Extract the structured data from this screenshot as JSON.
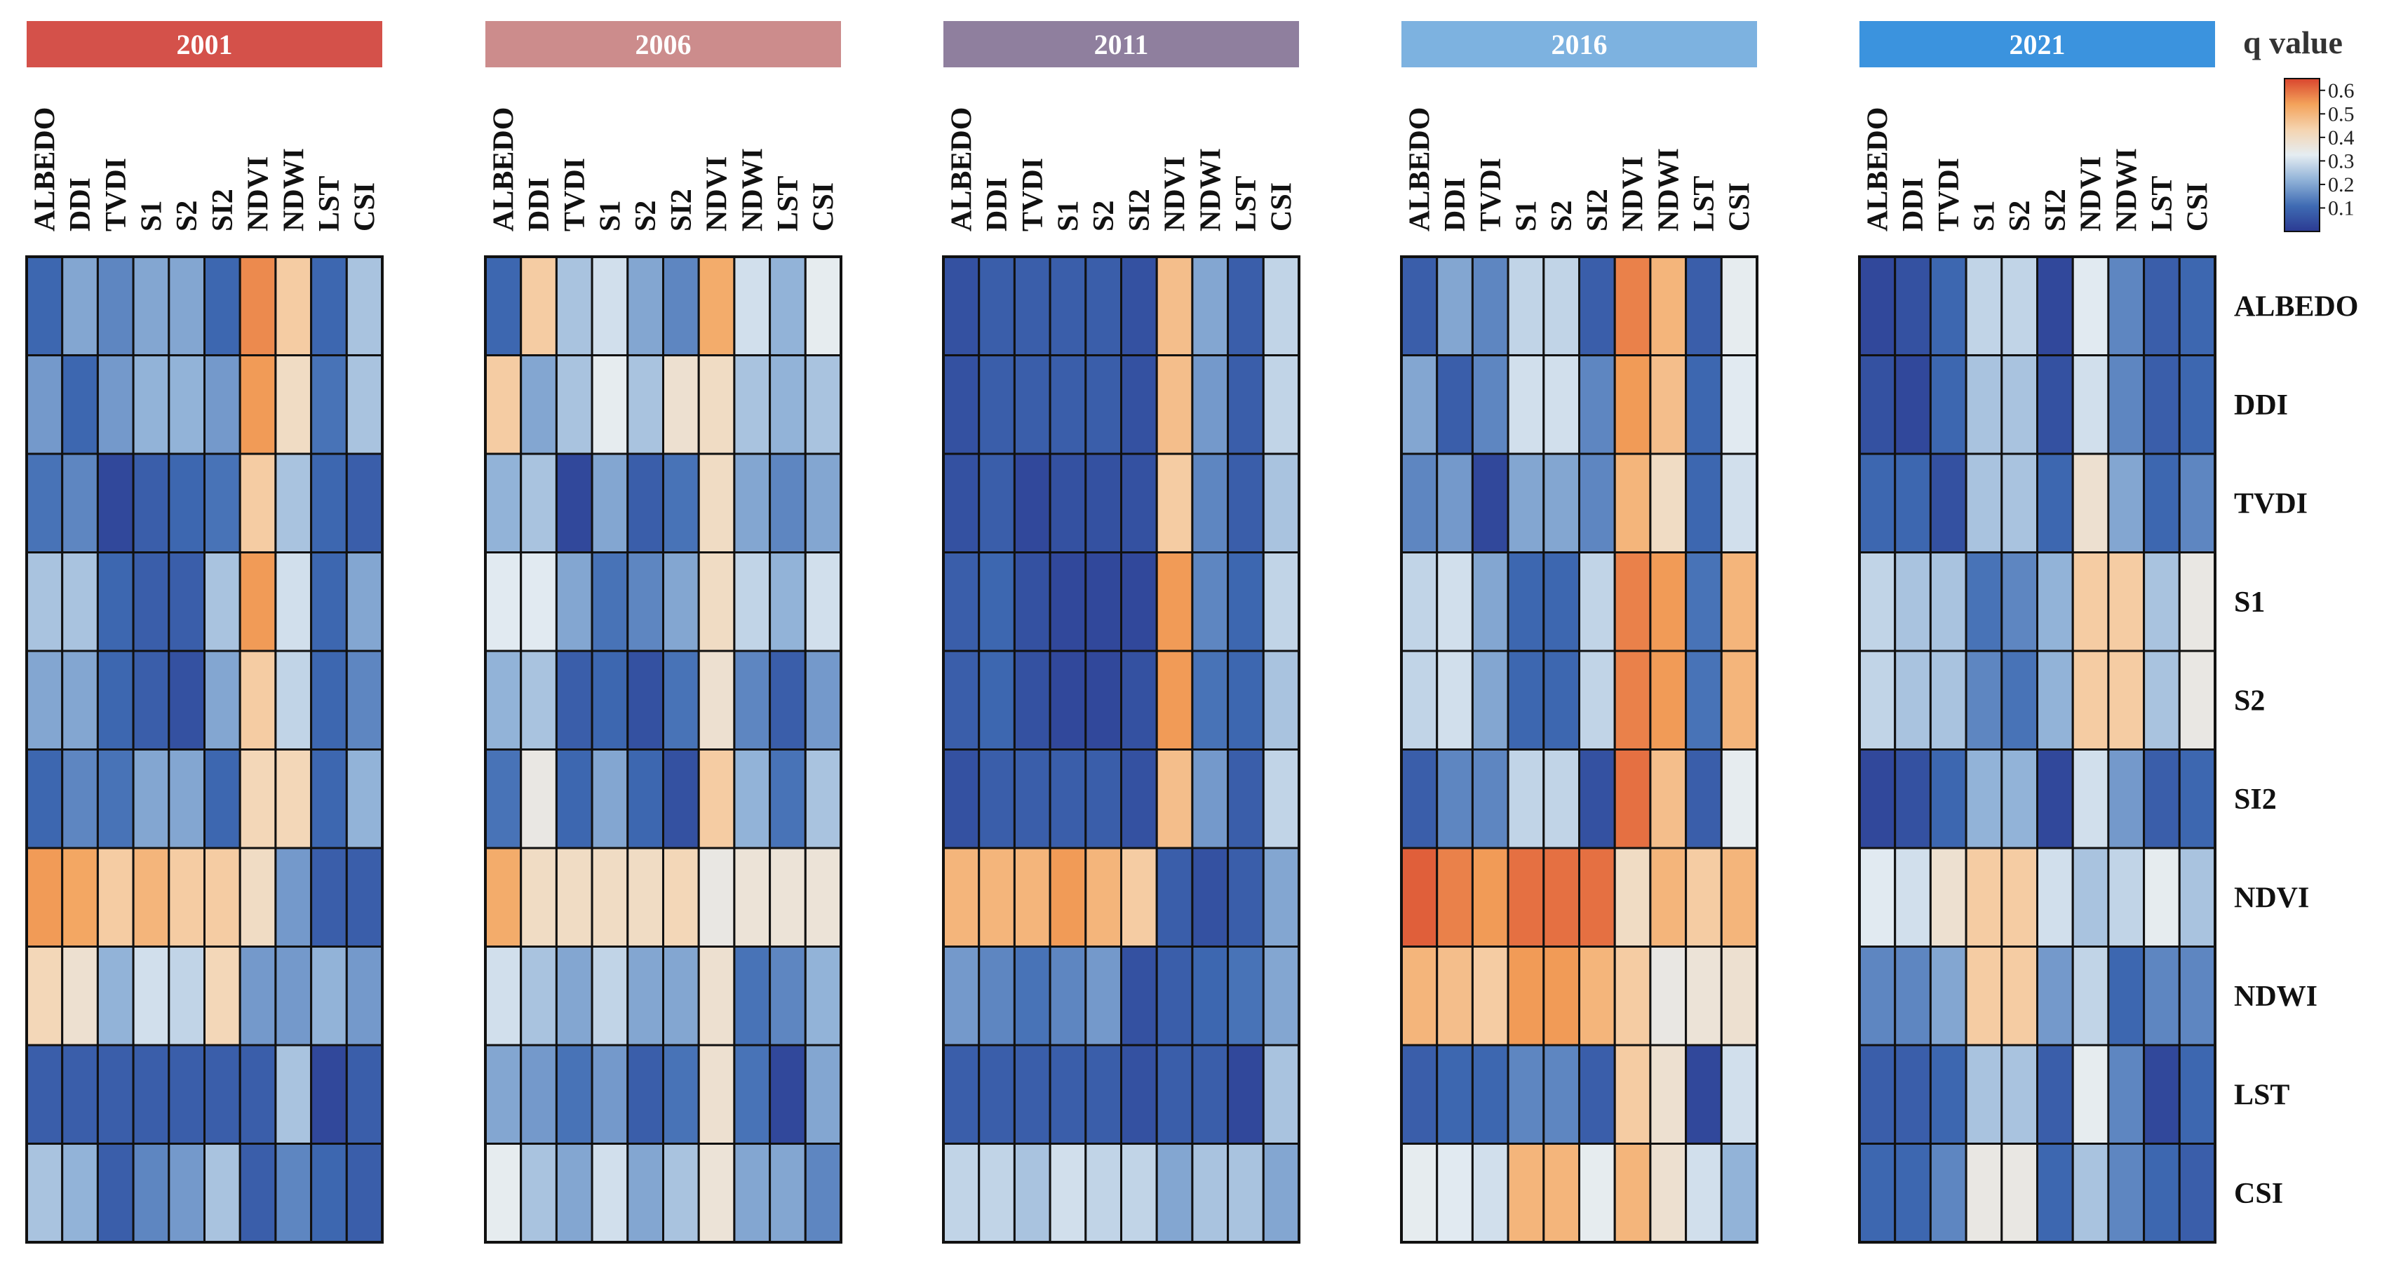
{
  "chart_data": {
    "type": "heatmap",
    "legend_title": "q value",
    "colorbar": {
      "range": [
        0,
        0.65
      ],
      "ticks": [
        "0.6",
        "0.5",
        "0.4",
        "0.3",
        "0.2",
        "0.1"
      ],
      "tick_values": [
        0.6,
        0.5,
        0.4,
        0.3,
        0.2,
        0.1
      ],
      "colors": [
        "#2b3a92",
        "#3f6bb3",
        "#8fb1d7",
        "#e5edf2",
        "#f5d4b0",
        "#f3a25a",
        "#d9452e"
      ]
    },
    "variables": [
      "ALBEDO",
      "DDI",
      "TVDI",
      "S1",
      "S2",
      "SI2",
      "NDVI",
      "NDWI",
      "LST",
      "CSI"
    ],
    "panels": [
      {
        "year": "2001",
        "header_color": "#d4514a",
        "matrix": [
          [
            0.1,
            0.2,
            0.15,
            0.2,
            0.2,
            0.1,
            0.57,
            0.45,
            0.1,
            0.25
          ],
          [
            0.18,
            0.1,
            0.18,
            0.22,
            0.22,
            0.18,
            0.55,
            0.4,
            0.12,
            0.25
          ],
          [
            0.12,
            0.15,
            0.03,
            0.08,
            0.1,
            0.12,
            0.45,
            0.25,
            0.1,
            0.08
          ],
          [
            0.25,
            0.25,
            0.1,
            0.08,
            0.08,
            0.25,
            0.55,
            0.3,
            0.1,
            0.2
          ],
          [
            0.2,
            0.2,
            0.1,
            0.08,
            0.05,
            0.2,
            0.45,
            0.28,
            0.1,
            0.15
          ],
          [
            0.1,
            0.15,
            0.12,
            0.2,
            0.2,
            0.1,
            0.42,
            0.42,
            0.1,
            0.22
          ],
          [
            0.55,
            0.53,
            0.45,
            0.5,
            0.45,
            0.45,
            0.4,
            0.18,
            0.08,
            0.08
          ],
          [
            0.42,
            0.38,
            0.22,
            0.3,
            0.28,
            0.42,
            0.18,
            0.18,
            0.22,
            0.18
          ],
          [
            0.08,
            0.08,
            0.08,
            0.08,
            0.08,
            0.08,
            0.08,
            0.25,
            0.03,
            0.08
          ],
          [
            0.25,
            0.22,
            0.08,
            0.15,
            0.18,
            0.25,
            0.08,
            0.15,
            0.1,
            0.08
          ]
        ]
      },
      {
        "year": "2006",
        "header_color": "#cc8c8c",
        "matrix": [
          [
            0.1,
            0.45,
            0.25,
            0.3,
            0.2,
            0.15,
            0.52,
            0.3,
            0.22,
            0.33
          ],
          [
            0.45,
            0.2,
            0.25,
            0.33,
            0.25,
            0.38,
            0.4,
            0.25,
            0.22,
            0.25
          ],
          [
            0.22,
            0.25,
            0.03,
            0.2,
            0.08,
            0.12,
            0.4,
            0.2,
            0.15,
            0.2
          ],
          [
            0.32,
            0.32,
            0.2,
            0.12,
            0.15,
            0.2,
            0.4,
            0.28,
            0.22,
            0.3
          ],
          [
            0.22,
            0.25,
            0.08,
            0.1,
            0.05,
            0.12,
            0.38,
            0.15,
            0.08,
            0.18
          ],
          [
            0.12,
            0.35,
            0.1,
            0.2,
            0.1,
            0.05,
            0.45,
            0.22,
            0.12,
            0.25
          ],
          [
            0.52,
            0.4,
            0.4,
            0.4,
            0.4,
            0.42,
            0.35,
            0.37,
            0.37,
            0.37
          ],
          [
            0.3,
            0.25,
            0.2,
            0.28,
            0.2,
            0.2,
            0.38,
            0.12,
            0.15,
            0.22
          ],
          [
            0.2,
            0.18,
            0.12,
            0.18,
            0.08,
            0.12,
            0.38,
            0.12,
            0.03,
            0.2
          ],
          [
            0.33,
            0.25,
            0.2,
            0.3,
            0.2,
            0.25,
            0.37,
            0.2,
            0.2,
            0.15
          ]
        ]
      },
      {
        "year": "2011",
        "header_color": "#8f7f9e",
        "matrix": [
          [
            0.05,
            0.08,
            0.08,
            0.08,
            0.08,
            0.05,
            0.48,
            0.2,
            0.08,
            0.28
          ],
          [
            0.05,
            0.08,
            0.08,
            0.08,
            0.08,
            0.05,
            0.48,
            0.18,
            0.08,
            0.28
          ],
          [
            0.05,
            0.08,
            0.03,
            0.05,
            0.05,
            0.05,
            0.45,
            0.15,
            0.08,
            0.25
          ],
          [
            0.08,
            0.1,
            0.05,
            0.03,
            0.03,
            0.03,
            0.55,
            0.15,
            0.1,
            0.28
          ],
          [
            0.08,
            0.1,
            0.05,
            0.03,
            0.03,
            0.05,
            0.55,
            0.12,
            0.1,
            0.25
          ],
          [
            0.05,
            0.08,
            0.08,
            0.08,
            0.08,
            0.05,
            0.48,
            0.18,
            0.08,
            0.28
          ],
          [
            0.5,
            0.5,
            0.5,
            0.55,
            0.5,
            0.45,
            0.08,
            0.05,
            0.08,
            0.2
          ],
          [
            0.18,
            0.15,
            0.12,
            0.15,
            0.18,
            0.05,
            0.08,
            0.1,
            0.12,
            0.2
          ],
          [
            0.08,
            0.08,
            0.08,
            0.08,
            0.08,
            0.05,
            0.08,
            0.08,
            0.03,
            0.25
          ],
          [
            0.28,
            0.28,
            0.25,
            0.3,
            0.28,
            0.28,
            0.2,
            0.25,
            0.25,
            0.2
          ]
        ]
      },
      {
        "year": "2016",
        "header_color": "#7db2e0",
        "matrix": [
          [
            0.08,
            0.2,
            0.15,
            0.28,
            0.28,
            0.08,
            0.58,
            0.5,
            0.08,
            0.33
          ],
          [
            0.2,
            0.08,
            0.15,
            0.3,
            0.3,
            0.15,
            0.55,
            0.48,
            0.1,
            0.32
          ],
          [
            0.15,
            0.18,
            0.03,
            0.2,
            0.2,
            0.15,
            0.5,
            0.4,
            0.1,
            0.3
          ],
          [
            0.28,
            0.3,
            0.2,
            0.1,
            0.1,
            0.28,
            0.58,
            0.55,
            0.12,
            0.5
          ],
          [
            0.28,
            0.3,
            0.2,
            0.1,
            0.1,
            0.28,
            0.58,
            0.55,
            0.12,
            0.5
          ],
          [
            0.08,
            0.15,
            0.15,
            0.28,
            0.28,
            0.05,
            0.6,
            0.48,
            0.08,
            0.33
          ],
          [
            0.62,
            0.58,
            0.55,
            0.6,
            0.6,
            0.6,
            0.4,
            0.5,
            0.45,
            0.5
          ],
          [
            0.5,
            0.48,
            0.45,
            0.55,
            0.55,
            0.5,
            0.45,
            0.35,
            0.37,
            0.38
          ],
          [
            0.08,
            0.1,
            0.1,
            0.15,
            0.15,
            0.08,
            0.45,
            0.38,
            0.03,
            0.3
          ],
          [
            0.33,
            0.32,
            0.3,
            0.5,
            0.5,
            0.33,
            0.5,
            0.38,
            0.3,
            0.22
          ]
        ]
      },
      {
        "year": "2021",
        "header_color": "#3b93de",
        "matrix": [
          [
            0.03,
            0.05,
            0.1,
            0.28,
            0.28,
            0.03,
            0.32,
            0.15,
            0.08,
            0.1
          ],
          [
            0.05,
            0.03,
            0.1,
            0.25,
            0.25,
            0.05,
            0.3,
            0.15,
            0.08,
            0.1
          ],
          [
            0.1,
            0.1,
            0.05,
            0.25,
            0.25,
            0.1,
            0.38,
            0.2,
            0.1,
            0.15
          ],
          [
            0.28,
            0.25,
            0.25,
            0.12,
            0.15,
            0.22,
            0.45,
            0.45,
            0.25,
            0.35
          ],
          [
            0.28,
            0.25,
            0.25,
            0.15,
            0.12,
            0.22,
            0.45,
            0.45,
            0.25,
            0.35
          ],
          [
            0.03,
            0.05,
            0.1,
            0.22,
            0.22,
            0.03,
            0.3,
            0.18,
            0.08,
            0.1
          ],
          [
            0.32,
            0.3,
            0.38,
            0.45,
            0.45,
            0.3,
            0.25,
            0.28,
            0.33,
            0.25
          ],
          [
            0.15,
            0.15,
            0.2,
            0.45,
            0.45,
            0.18,
            0.28,
            0.1,
            0.15,
            0.15
          ],
          [
            0.08,
            0.08,
            0.1,
            0.25,
            0.25,
            0.08,
            0.33,
            0.15,
            0.03,
            0.1
          ],
          [
            0.1,
            0.1,
            0.15,
            0.35,
            0.35,
            0.1,
            0.25,
            0.15,
            0.1,
            0.08
          ]
        ]
      }
    ]
  }
}
